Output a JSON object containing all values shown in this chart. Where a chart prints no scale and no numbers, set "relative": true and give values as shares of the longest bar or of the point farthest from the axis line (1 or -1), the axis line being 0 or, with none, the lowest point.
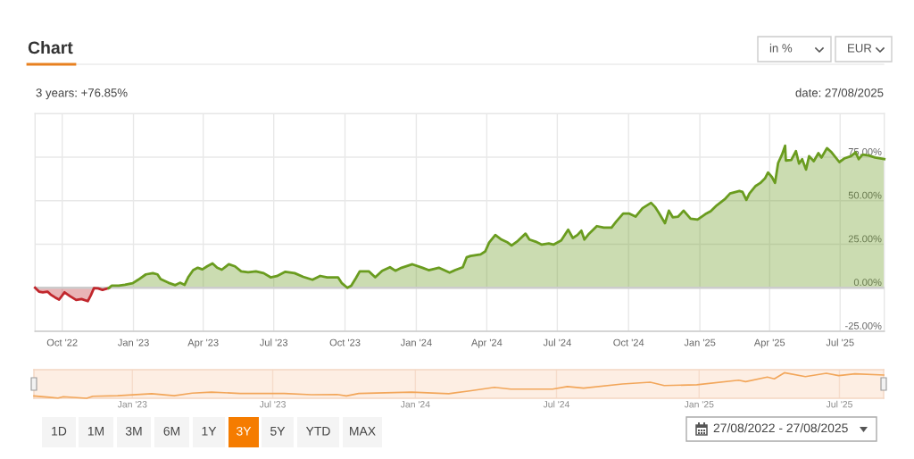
{
  "chart_data": [
    {
      "type": "area",
      "title": "Chart",
      "subtitle": "3 years: +76.85%",
      "annotations": [
        "date: 27/08/2025",
        "in %",
        "EUR",
        "1D",
        "1M",
        "3M",
        "6M",
        "1Y",
        "3Y",
        "5Y",
        "YTD",
        "MAX",
        "27/08/2022 - 27/08/2025"
      ],
      "xlim": [
        "2022-08-27",
        "2025-08-27"
      ],
      "ylim": [
        -25,
        100
      ],
      "xticks": [
        {
          "value": "2022-10-01",
          "label": "Oct '22"
        },
        {
          "value": "2023-01-01",
          "label": "Jan '23"
        },
        {
          "value": "2023-04-01",
          "label": "Apr '23"
        },
        {
          "value": "2023-07-01",
          "label": "Jul '23"
        },
        {
          "value": "2023-10-01",
          "label": "Oct '23"
        },
        {
          "value": "2024-01-01",
          "label": "Jan '24"
        },
        {
          "value": "2024-04-01",
          "label": "Apr '24"
        },
        {
          "value": "2024-07-01",
          "label": "Jul '24"
        },
        {
          "value": "2024-10-01",
          "label": "Oct '24"
        },
        {
          "value": "2025-01-01",
          "label": "Jan '25"
        },
        {
          "value": "2025-04-01",
          "label": "Apr '25"
        },
        {
          "value": "2025-07-01",
          "label": "Jul '25"
        }
      ],
      "yticks": [
        {
          "value": -25,
          "label": "-25.00%"
        },
        {
          "value": 0,
          "label": "0.00%"
        },
        {
          "value": 25,
          "label": "25.00%"
        },
        {
          "value": 50,
          "label": "50.00%"
        },
        {
          "value": 75,
          "label": "75.00%"
        }
      ],
      "grid": true,
      "ref_lines": [
        {
          "axis": "y",
          "value": 0,
          "color": "#cccccc"
        }
      ],
      "series": [
        {
          "color": "#c1272d",
          "x": [
            "2022-08-27",
            "2022-09-01",
            "2022-09-06",
            "2022-09-12",
            "2022-09-16",
            "2022-09-22",
            "2022-09-27",
            "2022-10-04",
            "2022-10-11",
            "2022-10-19",
            "2022-10-26",
            "2022-11-03",
            "2022-11-07",
            "2022-11-11",
            "2022-11-16",
            "2022-11-22",
            "2022-11-30"
          ],
          "values": [
            0.0,
            -2.2,
            -2.6,
            -2.2,
            -3.9,
            -5.6,
            -6.8,
            -2.6,
            -4.8,
            -7.0,
            -6.5,
            -7.7,
            -4.3,
            -0.2,
            -0.3,
            -1.2,
            -0.2
          ]
        },
        {
          "color": "#6a9c1f",
          "x": [
            "2022-11-30",
            "2022-12-04",
            "2022-12-13",
            "2022-12-21",
            "2022-12-31",
            "2023-01-07",
            "2023-01-17",
            "2023-01-26",
            "2023-02-01",
            "2023-02-05",
            "2023-02-15",
            "2023-02-24",
            "2023-03-02",
            "2023-03-08",
            "2023-03-13",
            "2023-03-19",
            "2023-03-25",
            "2023-03-31",
            "2023-04-06",
            "2023-04-13",
            "2023-04-19",
            "2023-04-25",
            "2023-05-04",
            "2023-05-12",
            "2023-05-20",
            "2023-05-29",
            "2023-06-08",
            "2023-06-18",
            "2023-06-27",
            "2023-07-05",
            "2023-07-16",
            "2023-07-28",
            "2023-08-08",
            "2023-08-20",
            "2023-08-30",
            "2023-09-08",
            "2023-09-22",
            "2023-09-27",
            "2023-10-04",
            "2023-10-09",
            "2023-10-15",
            "2023-10-20",
            "2023-11-01",
            "2023-11-09",
            "2023-11-18",
            "2023-11-28",
            "2023-12-05",
            "2023-12-13",
            "2023-12-27",
            "2024-01-09",
            "2024-01-17",
            "2024-01-30",
            "2024-02-13",
            "2024-02-20",
            "2024-03-01",
            "2024-03-06",
            "2024-03-11",
            "2024-03-24",
            "2024-03-30",
            "2024-04-04",
            "2024-04-12",
            "2024-04-20",
            "2024-04-28",
            "2024-05-03",
            "2024-05-11",
            "2024-05-21",
            "2024-05-26",
            "2024-06-03",
            "2024-06-11",
            "2024-06-20",
            "2024-06-26",
            "2024-07-06",
            "2024-07-15",
            "2024-07-21",
            "2024-07-27",
            "2024-08-01",
            "2024-08-05",
            "2024-08-11",
            "2024-08-21",
            "2024-08-30",
            "2024-09-09",
            "2024-09-15",
            "2024-09-24",
            "2024-10-02",
            "2024-10-10",
            "2024-10-19",
            "2024-10-30",
            "2024-11-04",
            "2024-11-09",
            "2024-11-17",
            "2024-11-22",
            "2024-11-27",
            "2024-12-04",
            "2024-12-11",
            "2024-12-20",
            "2024-12-29",
            "2025-01-08",
            "2025-01-15",
            "2025-01-23",
            "2025-02-02",
            "2025-02-09",
            "2025-02-21",
            "2025-02-25",
            "2025-03-02",
            "2025-03-06",
            "2025-03-14",
            "2025-03-20",
            "2025-03-26",
            "2025-03-30",
            "2025-04-04",
            "2025-04-08",
            "2025-04-12",
            "2025-04-17",
            "2025-04-21",
            "2025-04-22",
            "2025-04-29",
            "2025-05-05",
            "2025-05-09",
            "2025-05-13",
            "2025-05-18",
            "2025-05-22",
            "2025-05-28",
            "2025-06-03",
            "2025-06-07",
            "2025-06-14",
            "2025-06-20",
            "2025-06-30",
            "2025-07-07",
            "2025-07-15",
            "2025-07-21",
            "2025-07-25",
            "2025-07-30",
            "2025-08-07",
            "2025-08-15",
            "2025-08-27"
          ],
          "values": [
            -0.2,
            1.2,
            1.2,
            1.7,
            2.6,
            4.6,
            7.7,
            8.4,
            7.7,
            5.0,
            2.9,
            1.5,
            2.9,
            1.7,
            6.3,
            10.1,
            11.5,
            10.6,
            12.3,
            14.0,
            11.5,
            10.4,
            13.5,
            12.3,
            9.4,
            8.9,
            9.4,
            8.4,
            6.0,
            6.7,
            9.2,
            8.4,
            6.3,
            4.6,
            6.8,
            6.0,
            6.0,
            2.6,
            0.0,
            1.2,
            5.5,
            9.4,
            9.4,
            6.0,
            9.8,
            11.8,
            9.8,
            11.5,
            13.5,
            11.5,
            10.1,
            11.5,
            8.7,
            10.1,
            11.8,
            17.5,
            18.3,
            19.2,
            20.9,
            26.0,
            30.3,
            27.7,
            26.0,
            24.3,
            26.9,
            31.1,
            27.7,
            26.5,
            24.8,
            25.5,
            24.8,
            27.2,
            33.4,
            28.6,
            30.3,
            32.8,
            27.7,
            31.1,
            35.4,
            34.6,
            34.6,
            38.0,
            42.6,
            42.6,
            40.9,
            45.7,
            48.8,
            46.5,
            43.1,
            37.1,
            44.3,
            40.5,
            40.9,
            44.3,
            39.7,
            39.2,
            42.3,
            44.0,
            47.4,
            50.8,
            54.2,
            55.6,
            55.1,
            50.5,
            54.2,
            58.5,
            60.2,
            62.8,
            66.2,
            63.6,
            60.2,
            71.7,
            76.5,
            81.6,
            73.1,
            73.4,
            78.5,
            71.3,
            73.9,
            67.9,
            75.6,
            72.7,
            77.3,
            74.8,
            80.2,
            77.8,
            72.2,
            74.4,
            75.6,
            77.8,
            73.9,
            76.5,
            76.0,
            74.8,
            73.9
          ]
        }
      ]
    },
    {
      "type": "line",
      "relative": true,
      "color": "#f2a65a",
      "grid": "x",
      "xlim": [
        "2022-08-27",
        "2025-08-27"
      ],
      "xticks": [
        {
          "value": "2023-01-01",
          "label": "Jan '23"
        },
        {
          "value": "2023-07-01",
          "label": "Jul '23"
        },
        {
          "value": "2024-01-01",
          "label": "Jan '24"
        },
        {
          "value": "2024-07-01",
          "label": "Jul '24"
        },
        {
          "value": "2025-01-01",
          "label": "Jan '25"
        },
        {
          "value": "2025-07-01",
          "label": "Jul '25"
        }
      ],
      "x": [
        "2022-08-27",
        "2022-09-16",
        "2022-09-27",
        "2022-10-04",
        "2022-11-03",
        "2022-11-11",
        "2022-12-13",
        "2023-01-26",
        "2023-02-24",
        "2023-03-19",
        "2023-04-13",
        "2023-05-20",
        "2023-07-16",
        "2023-08-20",
        "2023-09-22",
        "2023-10-04",
        "2023-10-20",
        "2023-12-27",
        "2024-02-13",
        "2024-03-11",
        "2024-04-12",
        "2024-05-03",
        "2024-06-26",
        "2024-07-15",
        "2024-08-05",
        "2024-09-24",
        "2024-10-30",
        "2024-11-17",
        "2024-12-29",
        "2025-02-21",
        "2025-03-02",
        "2025-03-30",
        "2025-04-08",
        "2025-04-21",
        "2025-05-18",
        "2025-06-14",
        "2025-06-30",
        "2025-07-21",
        "2025-08-27"
      ],
      "values": [
        0.09,
        0.04,
        0.01,
        0.06,
        0.0,
        0.08,
        0.1,
        0.18,
        0.1,
        0.2,
        0.24,
        0.19,
        0.19,
        0.14,
        0.15,
        0.09,
        0.19,
        0.24,
        0.18,
        0.29,
        0.43,
        0.36,
        0.36,
        0.46,
        0.4,
        0.56,
        0.63,
        0.5,
        0.53,
        0.71,
        0.65,
        0.83,
        0.76,
        1.0,
        0.85,
        0.98,
        0.89,
        0.96,
        0.91
      ]
    }
  ]
}
